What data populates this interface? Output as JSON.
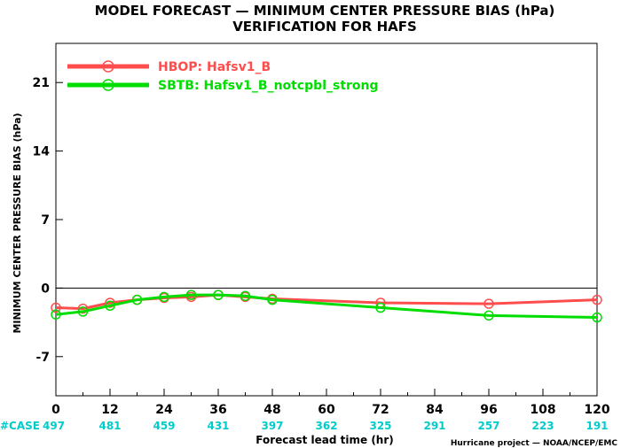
{
  "chart_data": {
    "type": "line",
    "title": "MODEL FORECAST — MINIMUM CENTER PRESSURE BIAS (hPa)",
    "subtitle": "VERIFICATION FOR HAFS",
    "xlabel": "Forecast lead time (hr)",
    "ylabel": "MINIMUM CENTER PRESSURE BIAS (hPa)",
    "xlim": [
      0,
      120
    ],
    "ylim": [
      -11,
      25
    ],
    "x_ticks": [
      0,
      12,
      24,
      36,
      48,
      60,
      72,
      84,
      96,
      108,
      120
    ],
    "y_ticks": [
      -7,
      0,
      7,
      14,
      21
    ],
    "zero_line": true,
    "grid": false,
    "legend_position": "top-left",
    "series": [
      {
        "name": "HBOP: Hafsv1_B",
        "color": "#ff4d4d",
        "x": [
          0,
          6,
          12,
          18,
          24,
          30,
          36,
          42,
          48,
          72,
          96,
          120
        ],
        "y": [
          -2.0,
          -2.1,
          -1.5,
          -1.2,
          -1.0,
          -0.9,
          -0.7,
          -0.9,
          -1.1,
          -1.5,
          -1.6,
          -1.2
        ]
      },
      {
        "name": "SBTB: Hafsv1_B_notcpbl_strong",
        "color": "#00dd00",
        "x": [
          0,
          6,
          12,
          18,
          24,
          30,
          36,
          42,
          48,
          72,
          96,
          120
        ],
        "y": [
          -2.7,
          -2.4,
          -1.8,
          -1.2,
          -0.9,
          -0.7,
          -0.7,
          -0.8,
          -1.2,
          -2.0,
          -2.8,
          -3.0
        ]
      }
    ],
    "case_label": "#CASE",
    "case_color": "#00cccc",
    "case_counts": [
      {
        "x": 0,
        "n": "497"
      },
      {
        "x": 12,
        "n": "481"
      },
      {
        "x": 24,
        "n": "459"
      },
      {
        "x": 36,
        "n": "431"
      },
      {
        "x": 48,
        "n": "397"
      },
      {
        "x": 60,
        "n": "362"
      },
      {
        "x": 72,
        "n": "325"
      },
      {
        "x": 84,
        "n": "291"
      },
      {
        "x": 96,
        "n": "257"
      },
      {
        "x": 108,
        "n": "223"
      },
      {
        "x": 120,
        "n": "191"
      }
    ],
    "credit": "Hurricane project — NOAA/NCEP/EMC"
  }
}
